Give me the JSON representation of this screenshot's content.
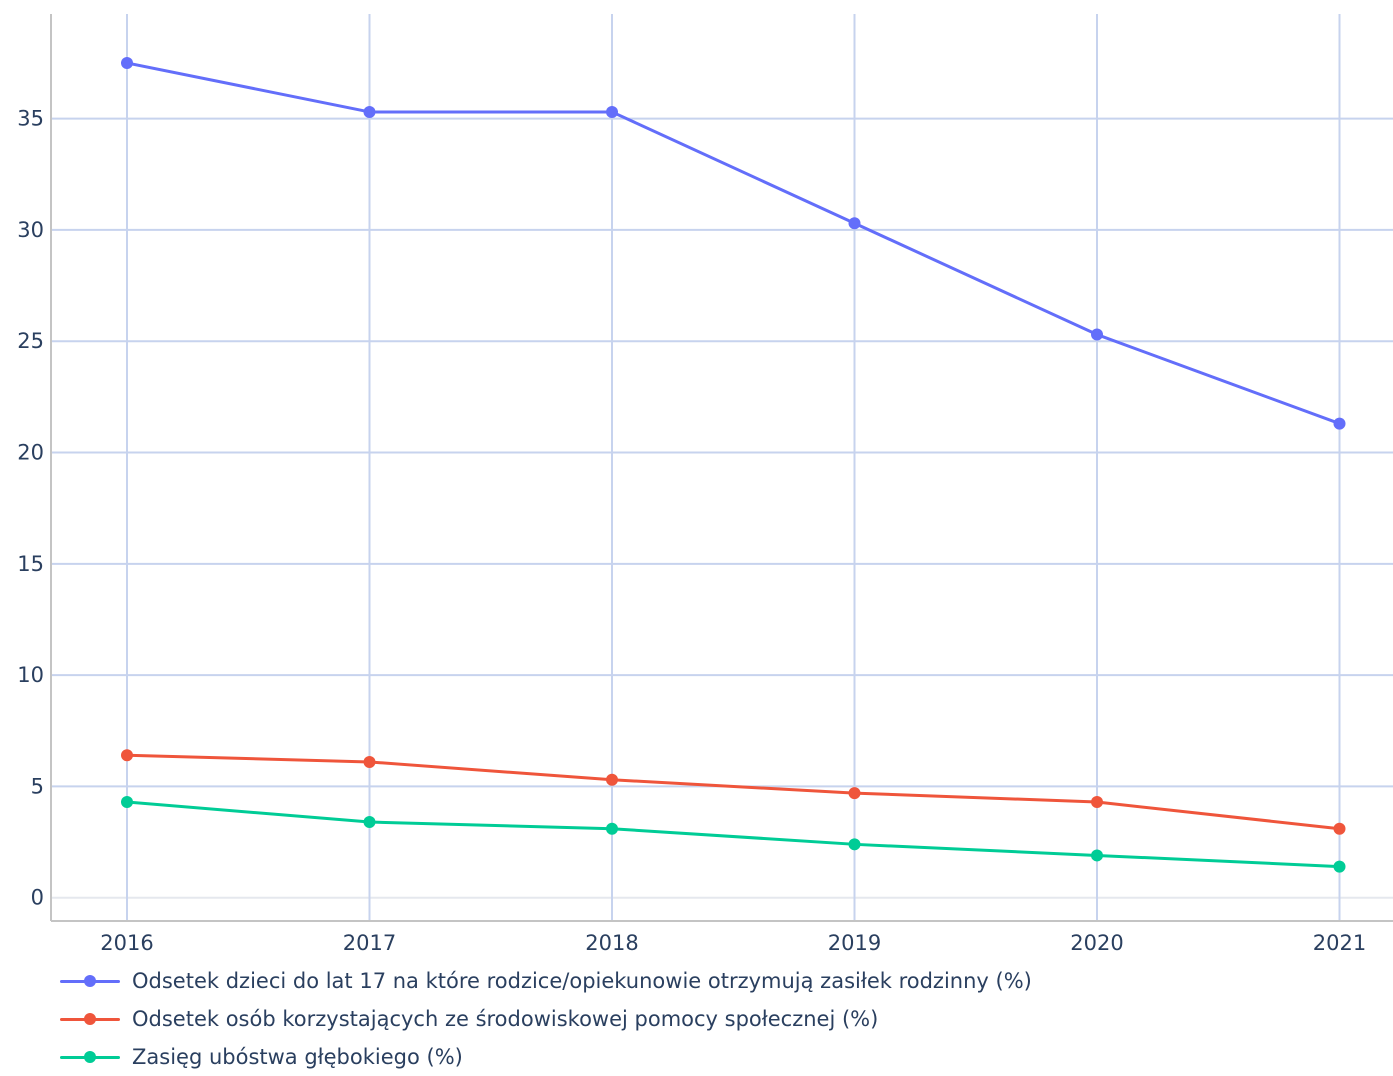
{
  "chart_data": {
    "type": "line",
    "title": "",
    "xlabel": "",
    "ylabel": "",
    "x": [
      "2016",
      "2017",
      "2018",
      "2019",
      "2020",
      "2021"
    ],
    "ylim": [
      -1,
      39.7
    ],
    "yticks": [
      0,
      5,
      10,
      15,
      20,
      25,
      30,
      35
    ],
    "yticklabels": [
      "0",
      "5",
      "10",
      "15",
      "20",
      "25",
      "30",
      "35"
    ],
    "grid": true,
    "legend_position": "bottom-left",
    "series": [
      {
        "name": "Odsetek dzieci do lat 17 na które rodzice/opiekunowie otrzymują zasiłek rodzinny (%)",
        "color": "#636efa",
        "values": [
          37.5,
          35.3,
          35.3,
          30.3,
          25.3,
          21.3
        ]
      },
      {
        "name": "Odsetek osób korzystających ze środowiskowej pomocy społecznej (%)",
        "color": "#ef553b",
        "values": [
          6.4,
          6.1,
          5.3,
          4.7,
          4.3,
          3.1
        ]
      },
      {
        "name": "Zasięg ubóstwa głębokiego (%)",
        "color": "#00cc96",
        "values": [
          4.3,
          3.4,
          3.1,
          2.4,
          1.9,
          1.4
        ]
      }
    ]
  }
}
